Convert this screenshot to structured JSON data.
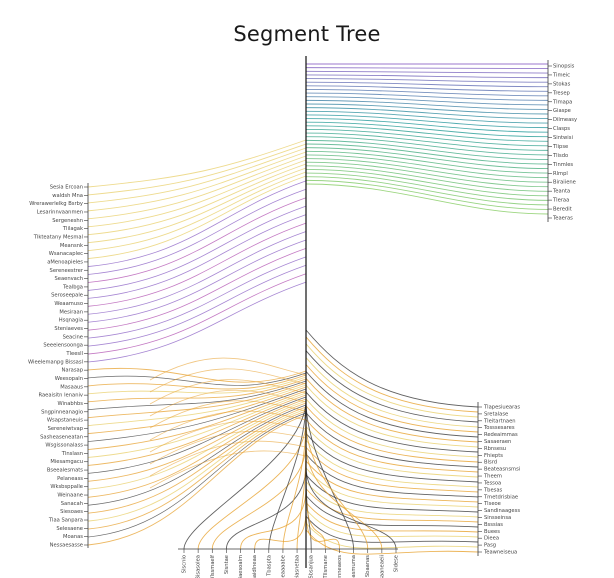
{
  "title": "Segment Tree",
  "colors": {
    "trunk": "#111111",
    "purple": "#8a5fc4",
    "magenta": "#b04fb0",
    "teal": "#2fa0a0",
    "green": "#8ccf6b",
    "yellow": "#e8cf6a",
    "orange": "#e7a230",
    "dark": "#3a3a3a",
    "label": "#444444"
  },
  "top_right_labels": [
    "Sinopsis",
    "Timeic",
    "Stokas",
    "Tresep",
    "Tlmapa",
    "Giaspe",
    "Dilmeasy",
    "Clasps",
    "Sintwisi",
    "Tlipse",
    "Tlisdo",
    "Tinmles",
    "Rlmpl",
    "Biraiiene",
    "Teanta",
    "Tleraa",
    "Beredit",
    "Teaeras"
  ],
  "left_labels": [
    "Sesia Ercoan",
    "waldsh Mna",
    "Wrerawerlelkg Bsrby",
    "Lesarinnvaanmen",
    "Sergeneshn",
    "Tlilagak",
    "Tlkteatany Mesmal",
    "Meansnk",
    "Wsanacaplec",
    "aMenoapieles",
    "Sereneestrer",
    "Seaenvach",
    "Tealbga",
    "Seroseepale",
    "Weaamuso",
    "Mesiraan",
    "Hsqnagia",
    "Steniaeves",
    "Seacine",
    "Seeeiensoonga",
    "Tleesll",
    "Wieelemanpg Bissasl",
    "Narasap",
    "Weesopaln",
    "Masaaus",
    "Raeaisitn lenaniv",
    "Winabhbs",
    "Sngpinneanagio",
    "Wsapstaneuis",
    "Sereneiwtvap",
    "Sasheaseneatan",
    "Wsgissonalass",
    "Tlnslasn",
    "Miesamgacu",
    "Bseealesmats",
    "Pelaneass",
    "Wksbsppalle",
    "Weinaane",
    "Sanacah",
    "Siesoaes",
    "Tlaa Sanpara",
    "Selesaene",
    "Moanas",
    "Nessaesasse"
  ],
  "right_labels": [
    "Tlapesiuearas",
    "Sretalase",
    "Tleitartnaen",
    "Tosssesares",
    "Redeaimmas",
    "Sasaeraen",
    "Rbnsesu",
    "Fhiepts",
    "Blsrd",
    "Beateasnsmsi",
    "Theem",
    "Tessoa",
    "Tbesas",
    "Tmetdrisbiae",
    "Tlseoe",
    "Sandinaagess",
    "Sinsseinsa",
    "Bsssias",
    "Buees",
    "Dieea",
    "Pasg",
    "Teawneiseua"
  ],
  "bottom_labels": [
    "Slscnio",
    "Bisasolea",
    "Wlssmaelf",
    "Sisntae",
    "Baesoalm",
    "Sluonaidlneaa",
    "Tbaspta",
    "Sbeaaaabe",
    "Ssaeiasnetaa",
    "Sbsanjua",
    "Tllsmane",
    "Tenneaeos",
    "Sbasmuma",
    "Sbaanas",
    "Sesaaneaeii",
    "Sldese"
  ]
}
